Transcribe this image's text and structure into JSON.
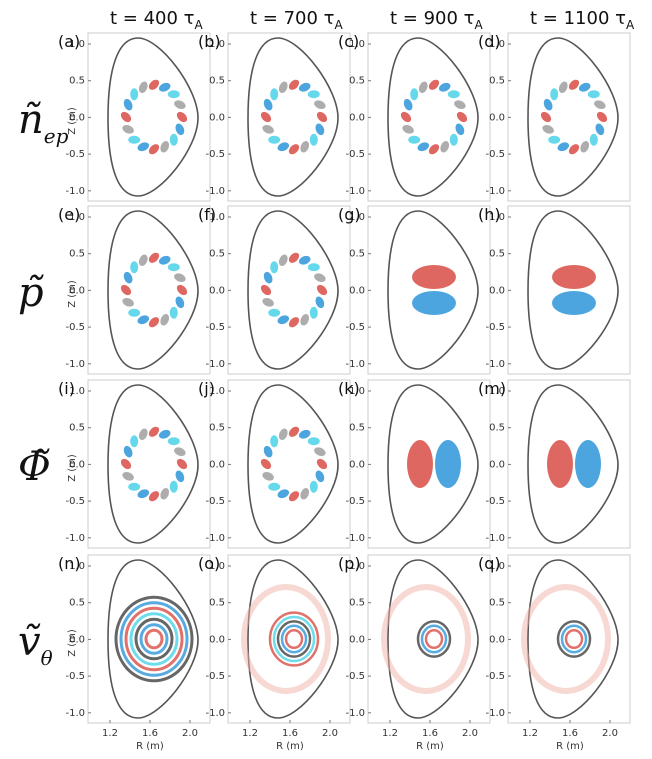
{
  "columns": [
    {
      "text": "t = 400 τ",
      "sub": "A"
    },
    {
      "text": "t = 700 τ",
      "sub": "A"
    },
    {
      "text": "t = 900 τ",
      "sub": "A"
    },
    {
      "text": "t = 1100 τ",
      "sub": "A"
    }
  ],
  "rows": [
    {
      "label": "ñ",
      "sub": "ep"
    },
    {
      "label": "p̃"
    },
    {
      "label": "Φ̃"
    },
    {
      "label": "ṽ",
      "sub": "θ"
    }
  ],
  "panels": [
    [
      "(a)",
      "(b)",
      "(c)",
      "(d)"
    ],
    [
      "(e)",
      "(f)",
      "(g)",
      "(h)"
    ],
    [
      "(i)",
      "(j)",
      "(k)",
      "(m)"
    ],
    [
      "(n)",
      "(o)",
      "(p)",
      "(q)"
    ]
  ],
  "axes": {
    "ylabel": "Z (m)",
    "xlabel": "R (m)",
    "yticks": [
      "1.0",
      "0.5",
      "0.0",
      "-0.5",
      "-1.0"
    ],
    "xticks": [
      "1.2",
      "1.6",
      "2.0"
    ]
  }
}
